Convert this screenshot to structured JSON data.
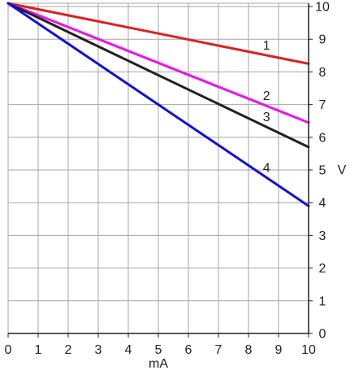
{
  "chart_data": {
    "type": "line",
    "xlabel": "mA",
    "ylabel": "V",
    "xlim": [
      0,
      10
    ],
    "ylim": [
      0,
      10
    ],
    "x_ticks": [
      0,
      1,
      2,
      3,
      4,
      5,
      6,
      7,
      8,
      9,
      10
    ],
    "y_ticks": [
      0,
      1,
      2,
      3,
      4,
      5,
      6,
      7,
      8,
      9,
      10
    ],
    "grid": true,
    "y_axis_side": "right",
    "grid_color": "#a6a6a6",
    "series": [
      {
        "name": "1",
        "x": [
          0,
          10
        ],
        "values": [
          10.1,
          8.25
        ],
        "color": "#dd2020"
      },
      {
        "name": "2",
        "x": [
          0,
          10
        ],
        "values": [
          10.1,
          6.45
        ],
        "color": "#ee10ee"
      },
      {
        "name": "3",
        "x": [
          0,
          10
        ],
        "values": [
          10.1,
          5.7
        ],
        "color": "#222222"
      },
      {
        "name": "4",
        "x": [
          0,
          10
        ],
        "values": [
          10.1,
          3.9
        ],
        "color": "#1010dd"
      }
    ]
  }
}
